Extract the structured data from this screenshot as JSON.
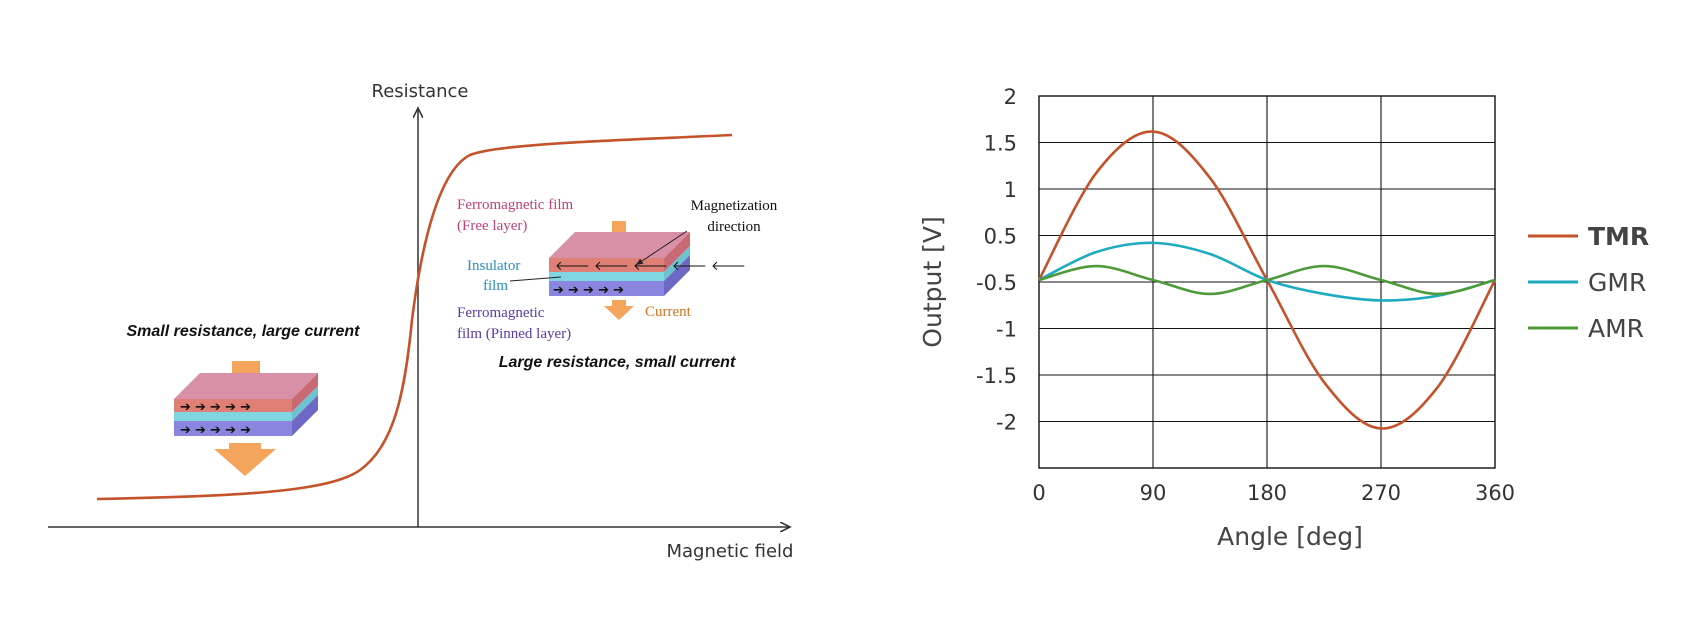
{
  "left_panel": {
    "y_axis_label": "Resistance",
    "x_axis_label": "Magnetic field",
    "small_state_caption": "Small resistance, large current",
    "large_state_caption": "Large resistance, small current",
    "free_layer_label_1": "Ferromagnetic film",
    "free_layer_label_2": "(Free layer)",
    "insulator_label_1": "Insulator",
    "insulator_label_2": "film",
    "pinned_layer_label_1": "Ferromagnetic",
    "pinned_layer_label_2": "film (Pinned layer)",
    "magnetization_label_1": "Magnetization",
    "magnetization_label_2": "direction",
    "current_label": "Current"
  },
  "chart_data": {
    "type": "line",
    "title": "",
    "xlabel": "Angle [deg]",
    "ylabel": "Output [V]",
    "xlim": [
      0,
      360
    ],
    "xticks": [
      "0",
      "90",
      "180",
      "270",
      "360"
    ],
    "ytick_labels": [
      "2",
      "1.5",
      "1",
      "0.5",
      "-0.5",
      "-1",
      "-1.5",
      "-2"
    ],
    "grid": true,
    "legend_position": "right",
    "series": [
      {
        "name": "TMR",
        "color": "#c4522a",
        "x": [
          0,
          45,
          90,
          135,
          180,
          225,
          270,
          315,
          360
        ],
        "y": [
          0,
          1.15,
          1.6,
          1.1,
          0,
          -1.1,
          -1.6,
          -1.15,
          0
        ]
      },
      {
        "name": "GMR",
        "color": "#1eaabf",
        "x": [
          0,
          45,
          90,
          135,
          180,
          225,
          270,
          315,
          360
        ],
        "y": [
          0,
          0.3,
          0.4,
          0.28,
          0,
          -0.15,
          -0.22,
          -0.17,
          0
        ]
      },
      {
        "name": "AMR",
        "color": "#4e9a3a",
        "x": [
          0,
          45,
          90,
          135,
          180,
          225,
          270,
          315,
          360
        ],
        "y": [
          0,
          0.15,
          0,
          -0.15,
          0,
          0.15,
          0,
          -0.15,
          0
        ]
      }
    ]
  }
}
